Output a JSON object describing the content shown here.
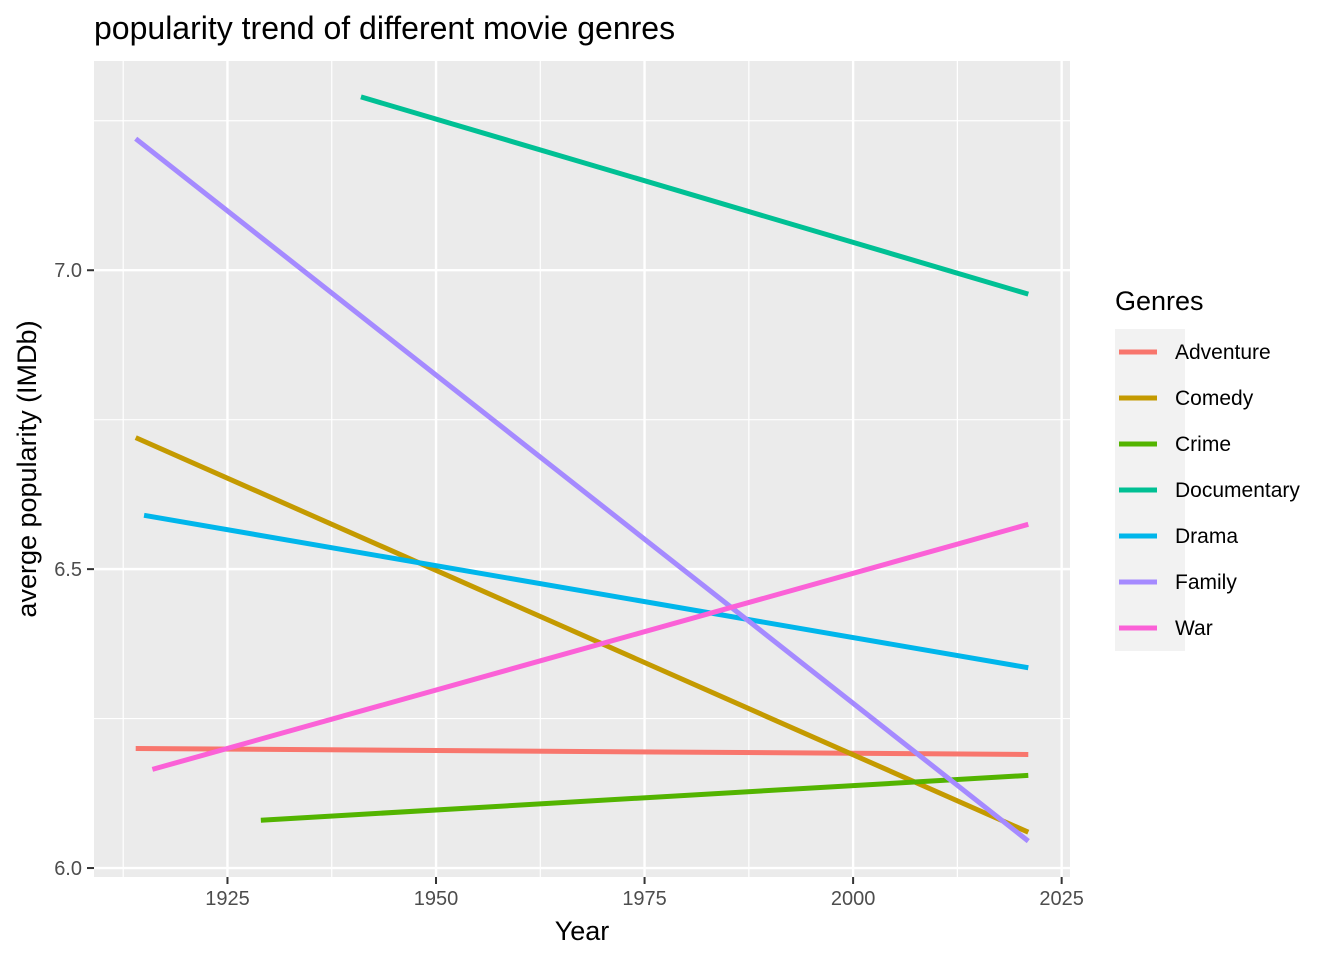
{
  "chart_data": {
    "type": "line",
    "title": "popularity trend of different movie genres",
    "xlabel": "Year",
    "ylabel": "averge popularity (IMDb)",
    "xlim": [
      1909,
      2026
    ],
    "ylim": [
      5.985,
      7.35
    ],
    "x_ticks": [
      1925,
      1950,
      1975,
      2000,
      2025
    ],
    "x_tick_labels": [
      "1925",
      "1950",
      "1975",
      "2000",
      "2025"
    ],
    "x_minor_ticks": [
      1912.5,
      1937.5,
      1962.5,
      1987.5,
      2012.5
    ],
    "y_ticks": [
      6.0,
      6.5,
      7.0
    ],
    "y_tick_labels": [
      "6.0",
      "6.5",
      "7.0"
    ],
    "y_minor_ticks": [
      6.25,
      6.75,
      7.25
    ],
    "grid": true,
    "legend_title": "Genres",
    "legend_position": "right",
    "series": [
      {
        "name": "Adventure",
        "color": "#F8766D",
        "x": [
          1914,
          2021
        ],
        "y": [
          6.2,
          6.19
        ]
      },
      {
        "name": "Comedy",
        "color": "#C49A00",
        "x": [
          1914,
          2021
        ],
        "y": [
          6.72,
          6.06
        ]
      },
      {
        "name": "Crime",
        "color": "#53B400",
        "x": [
          1929,
          2021
        ],
        "y": [
          6.08,
          6.155
        ]
      },
      {
        "name": "Documentary",
        "color": "#00C094",
        "x": [
          1941,
          2021
        ],
        "y": [
          7.29,
          6.96
        ]
      },
      {
        "name": "Drama",
        "color": "#00B6EB",
        "x": [
          1915,
          2021
        ],
        "y": [
          6.59,
          6.335
        ]
      },
      {
        "name": "Family",
        "color": "#A58AFF",
        "x": [
          1914,
          2021
        ],
        "y": [
          7.22,
          6.045
        ]
      },
      {
        "name": "War",
        "color": "#FB61D7",
        "x": [
          1916,
          2021
        ],
        "y": [
          6.165,
          6.575
        ]
      }
    ]
  }
}
